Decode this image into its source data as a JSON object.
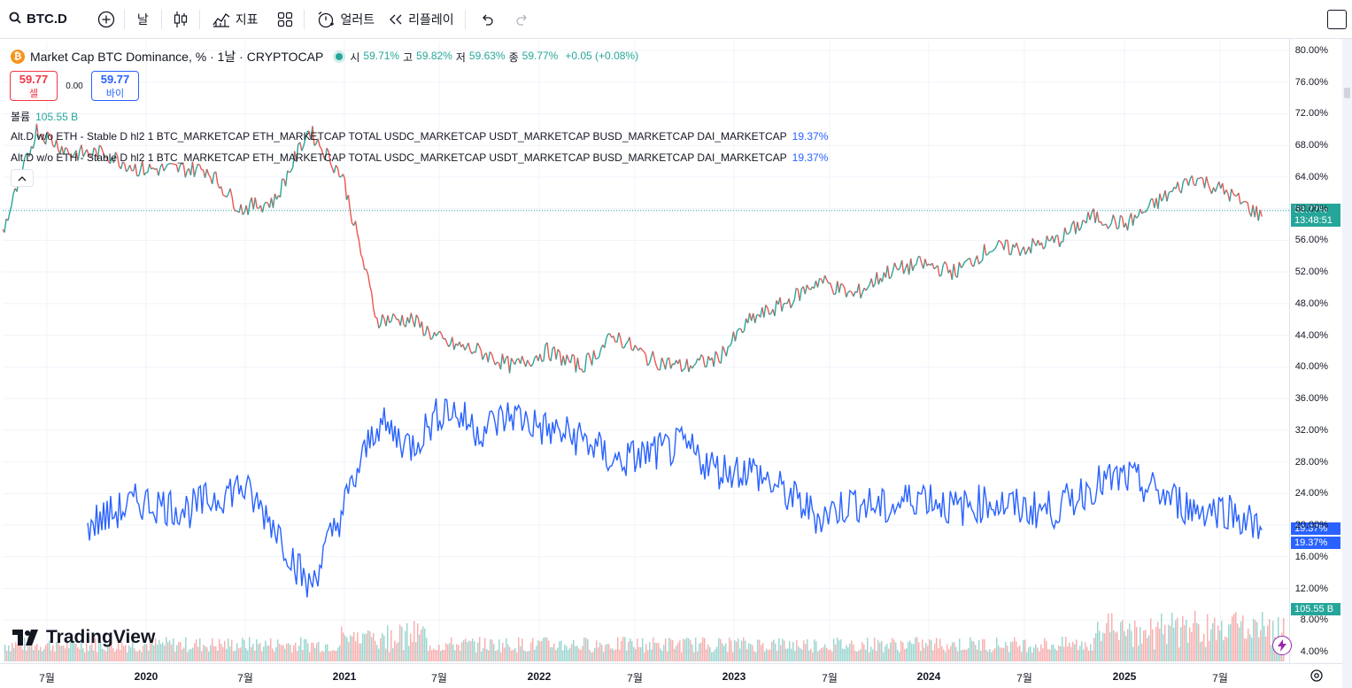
{
  "toolbar": {
    "symbol": "BTC.D",
    "interval": "날",
    "indicators_label": "지표",
    "alert_label": "얼러트",
    "replay_label": "리플레이"
  },
  "legend": {
    "coin_glyph": "₿",
    "title": "Market Cap BTC Dominance, % · 1날 · CRYPTOCAP",
    "open_key": "시",
    "open": "59.71%",
    "high_key": "고",
    "high": "59.82%",
    "low_key": "저",
    "low": "59.63%",
    "close_key": "종",
    "close": "59.77%",
    "change": "+0.05 (+0.08%)"
  },
  "trade": {
    "sell_price": "59.77",
    "sell_label": "셀",
    "spread": "0.00",
    "buy_price": "59.77",
    "buy_label": "바이"
  },
  "volume_legend": {
    "label": "볼륨",
    "value": "105.55 B"
  },
  "indicators": [
    {
      "label": "Alt.D w/o ETH - Stable D hl2 1 BTC_MARKETCAP ETH_MARKETCAP TOTAL USDC_MARKETCAP USDT_MARKETCAP BUSD_MARKETCAP DAI_MARKETCAP",
      "value": "19.37%"
    },
    {
      "label": "Alt.D w/o ETH - Stable D hl2 1 BTC_MARKETCAP ETH_MARKETCAP TOTAL USDC_MARKETCAP USDT_MARKETCAP BUSD_MARKETCAP DAI_MARKETCAP",
      "value": "19.37%"
    }
  ],
  "price_scale": [
    "80.00%",
    "76.00%",
    "72.00%",
    "68.00%",
    "64.00%",
    "60.00%",
    "56.00%",
    "52.00%",
    "48.00%",
    "44.00%",
    "40.00%",
    "36.00%",
    "32.00%",
    "28.00%",
    "24.00%",
    "20.00%",
    "16.00%",
    "12.00%",
    "8.00%",
    "4.00%"
  ],
  "price_tags": {
    "price": "59.77%",
    "countdown": "13:48:51",
    "alt_1": "19.37%",
    "alt_2": "19.37%",
    "volume": "105.55 B"
  },
  "time_scale": [
    "7월",
    "2020",
    "7월",
    "2021",
    "7월",
    "2022",
    "7월",
    "2023",
    "7월",
    "2024",
    "7월",
    "2025",
    "7월"
  ],
  "branding": {
    "logo_text": "TradingView"
  },
  "colors": {
    "up": "#26a69a",
    "down": "#ef5350",
    "alt_line": "#2962ff",
    "accent": "#2962ff"
  },
  "chart_data": {
    "type": "line",
    "title": "Market Cap BTC Dominance, % · 1날 · CRYPTOCAP",
    "ylim": [
      4,
      80
    ],
    "series": [
      {
        "name": "Market Cap BTC Dominance",
        "x": [
          "2019-07",
          "2019-09",
          "2019-11",
          "2020-01",
          "2020-03",
          "2020-05",
          "2020-07",
          "2020-09",
          "2020-11",
          "2021-01",
          "2021-03",
          "2021-05",
          "2021-07",
          "2021-09",
          "2021-11",
          "2022-01",
          "2022-03",
          "2022-05",
          "2022-07",
          "2022-09",
          "2022-11",
          "2023-01",
          "2023-03",
          "2023-05",
          "2023-07",
          "2023-09",
          "2023-11",
          "2024-01",
          "2024-03",
          "2024-05",
          "2024-07",
          "2024-09",
          "2024-11",
          "2025-01",
          "2025-03",
          "2025-05",
          "2025-07",
          "2025-09"
        ],
        "values": [
          57,
          70,
          67,
          67,
          65,
          65,
          65,
          60,
          61,
          70,
          64,
          46,
          46,
          43,
          42,
          40,
          42,
          40,
          44,
          41,
          40,
          41,
          46,
          48,
          51,
          49,
          52,
          53,
          52,
          55,
          55,
          56,
          59,
          58,
          61,
          64,
          62,
          59
        ]
      },
      {
        "name": "Alt.D w/o ETH - Stable",
        "x": [
          "2019-12",
          "2020-03",
          "2020-06",
          "2020-09",
          "2020-11",
          "2021-01",
          "2021-03",
          "2021-05",
          "2021-07",
          "2021-09",
          "2021-11",
          "2022-01",
          "2022-03",
          "2022-05",
          "2022-07",
          "2022-09",
          "2022-11",
          "2023-01",
          "2023-03",
          "2023-05",
          "2023-07",
          "2023-09",
          "2023-11",
          "2024-01",
          "2024-03",
          "2024-05",
          "2024-07",
          "2024-09",
          "2024-11",
          "2025-01",
          "2025-03",
          "2025-05",
          "2025-07",
          "2025-09"
        ],
        "values": [
          20,
          23,
          22,
          25,
          20,
          12,
          22,
          33,
          30,
          35,
          32,
          34,
          32,
          31,
          28,
          29,
          30,
          27,
          27,
          24,
          21,
          23,
          22,
          24,
          22,
          23,
          22,
          22,
          25,
          26,
          24,
          22,
          22,
          19.37
        ]
      }
    ],
    "volume": {
      "name": "볼륨",
      "last": 105.55,
      "unit": "B"
    },
    "x_tick_labels": [
      "7월",
      "2020",
      "7월",
      "2021",
      "7월",
      "2022",
      "7월",
      "2023",
      "7월",
      "2024",
      "7월",
      "2025",
      "7월"
    ],
    "y_tick_labels": [
      "80.00%",
      "76.00%",
      "72.00%",
      "68.00%",
      "64.00%",
      "60.00%",
      "56.00%",
      "52.00%",
      "48.00%",
      "44.00%",
      "40.00%",
      "36.00%",
      "32.00%",
      "28.00%",
      "24.00%",
      "20.00%",
      "16.00%",
      "12.00%",
      "8.00%",
      "4.00%"
    ],
    "last_price": 59.77,
    "grid": true
  }
}
